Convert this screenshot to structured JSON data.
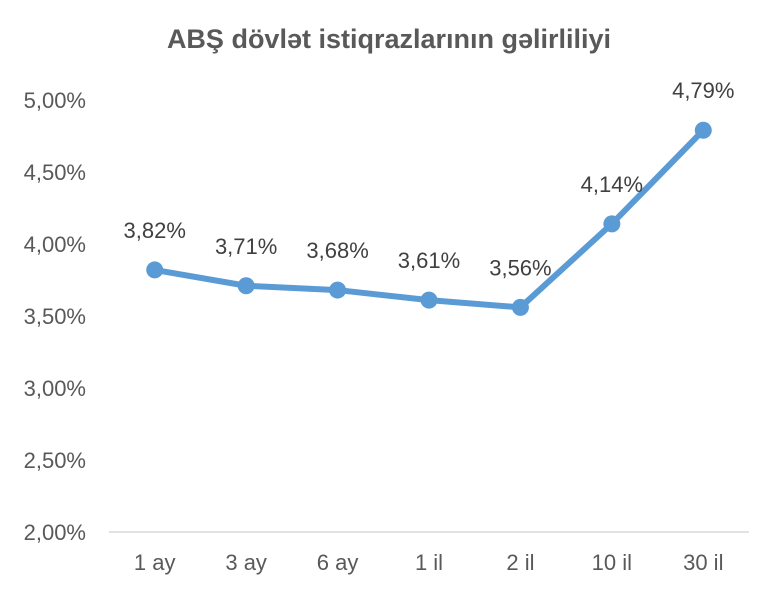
{
  "chart_data": {
    "type": "line",
    "title": "ABŞ dövlət istiqrazlarının gəlirliliyi",
    "xlabel": "",
    "ylabel": "",
    "categories": [
      "1 ay",
      "3 ay",
      "6 ay",
      "1 il",
      "2 il",
      "10 il",
      "30 il"
    ],
    "series": [
      {
        "values": [
          3.82,
          3.71,
          3.68,
          3.61,
          3.56,
          4.14,
          4.79
        ],
        "labels": [
          "3,82%",
          "3,71%",
          "3,68%",
          "3,61%",
          "3,56%",
          "4,14%",
          "4,79%"
        ],
        "color": "#5B9BD5"
      }
    ],
    "ylim": [
      2.0,
      5.0
    ],
    "yticks": [
      {
        "value": 5.0,
        "label": "5,00%"
      },
      {
        "value": 4.5,
        "label": "4,50%"
      },
      {
        "value": 4.0,
        "label": "4,00%"
      },
      {
        "value": 3.5,
        "label": "3,50%"
      },
      {
        "value": 3.0,
        "label": "3,00%"
      },
      {
        "value": 2.5,
        "label": "2,50%"
      },
      {
        "value": 2.0,
        "label": "2,00%"
      }
    ],
    "grid": false,
    "legend": "none",
    "axis_color": "#D9D9D9",
    "text_color": "#595959"
  }
}
